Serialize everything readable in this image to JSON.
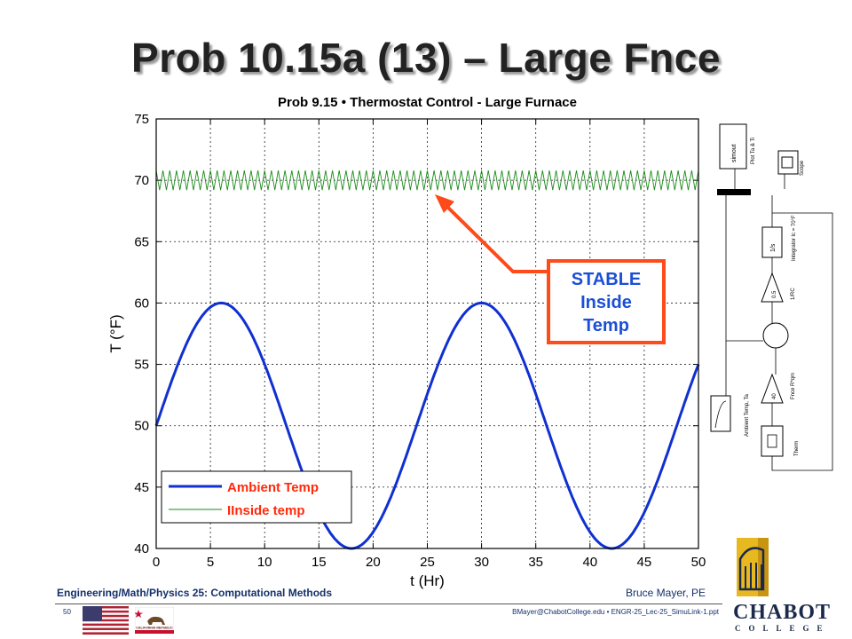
{
  "slide": {
    "title": "Prob 10.15a (13) – Large Fnce",
    "callout": [
      "STABLE",
      "Inside",
      "Temp"
    ],
    "footer": {
      "course": "Engineering/Math/Physics 25: Computational Methods",
      "author": "Bruce Mayer, PE",
      "slide_number": "50",
      "email_file": "BMayer@ChabotCollege.edu  • ENGR-25_Lec-25_SimuLink-1.ppt"
    },
    "logo": {
      "name": "CHABOT",
      "sub": "COLLEGE"
    },
    "flags": {
      "us": "us-flag-icon",
      "ca": "california-flag-icon",
      "ca_text": "CALIFORNIA REPUBLIC"
    }
  },
  "colors": {
    "ambient": "#1030d0",
    "inside": "#1a8a1a",
    "callout": "#ff4a1a",
    "callout_text": "#1b4fd6",
    "footer": "#15316b",
    "logo": "#e8b820"
  },
  "chart_data": {
    "type": "line",
    "title": "Prob 9.15 • Thermostat Control - Large Furnace",
    "xlabel": "t (Hr)",
    "ylabel": "T (°F)",
    "xlim": [
      0,
      50
    ],
    "ylim": [
      40,
      75
    ],
    "xticks": [
      0,
      5,
      10,
      15,
      20,
      25,
      30,
      35,
      40,
      45,
      50
    ],
    "yticks": [
      40,
      45,
      50,
      55,
      60,
      65,
      70,
      75
    ],
    "grid": true,
    "legend_position": "bottom-left",
    "series": [
      {
        "name": "Ambient Temp",
        "color": "#1030d0",
        "function": "sine",
        "mean": 50,
        "amplitude": 10,
        "period_hr": 24,
        "phase_start_hr": 0
      },
      {
        "name": "IInside temp",
        "color": "#1a8a1a",
        "function": "oscillation",
        "mean": 70,
        "amplitude": 0.8,
        "cycles": 80
      }
    ]
  },
  "diagram": {
    "blocks": [
      "simout",
      "Plot Ta & Ti",
      "Scope",
      "1/s",
      "Integrator Ic = 70°F",
      "0.5",
      "1/RC",
      "40",
      "Ambient Temp, Ta",
      "Fnce R*qm",
      "Therm"
    ]
  }
}
